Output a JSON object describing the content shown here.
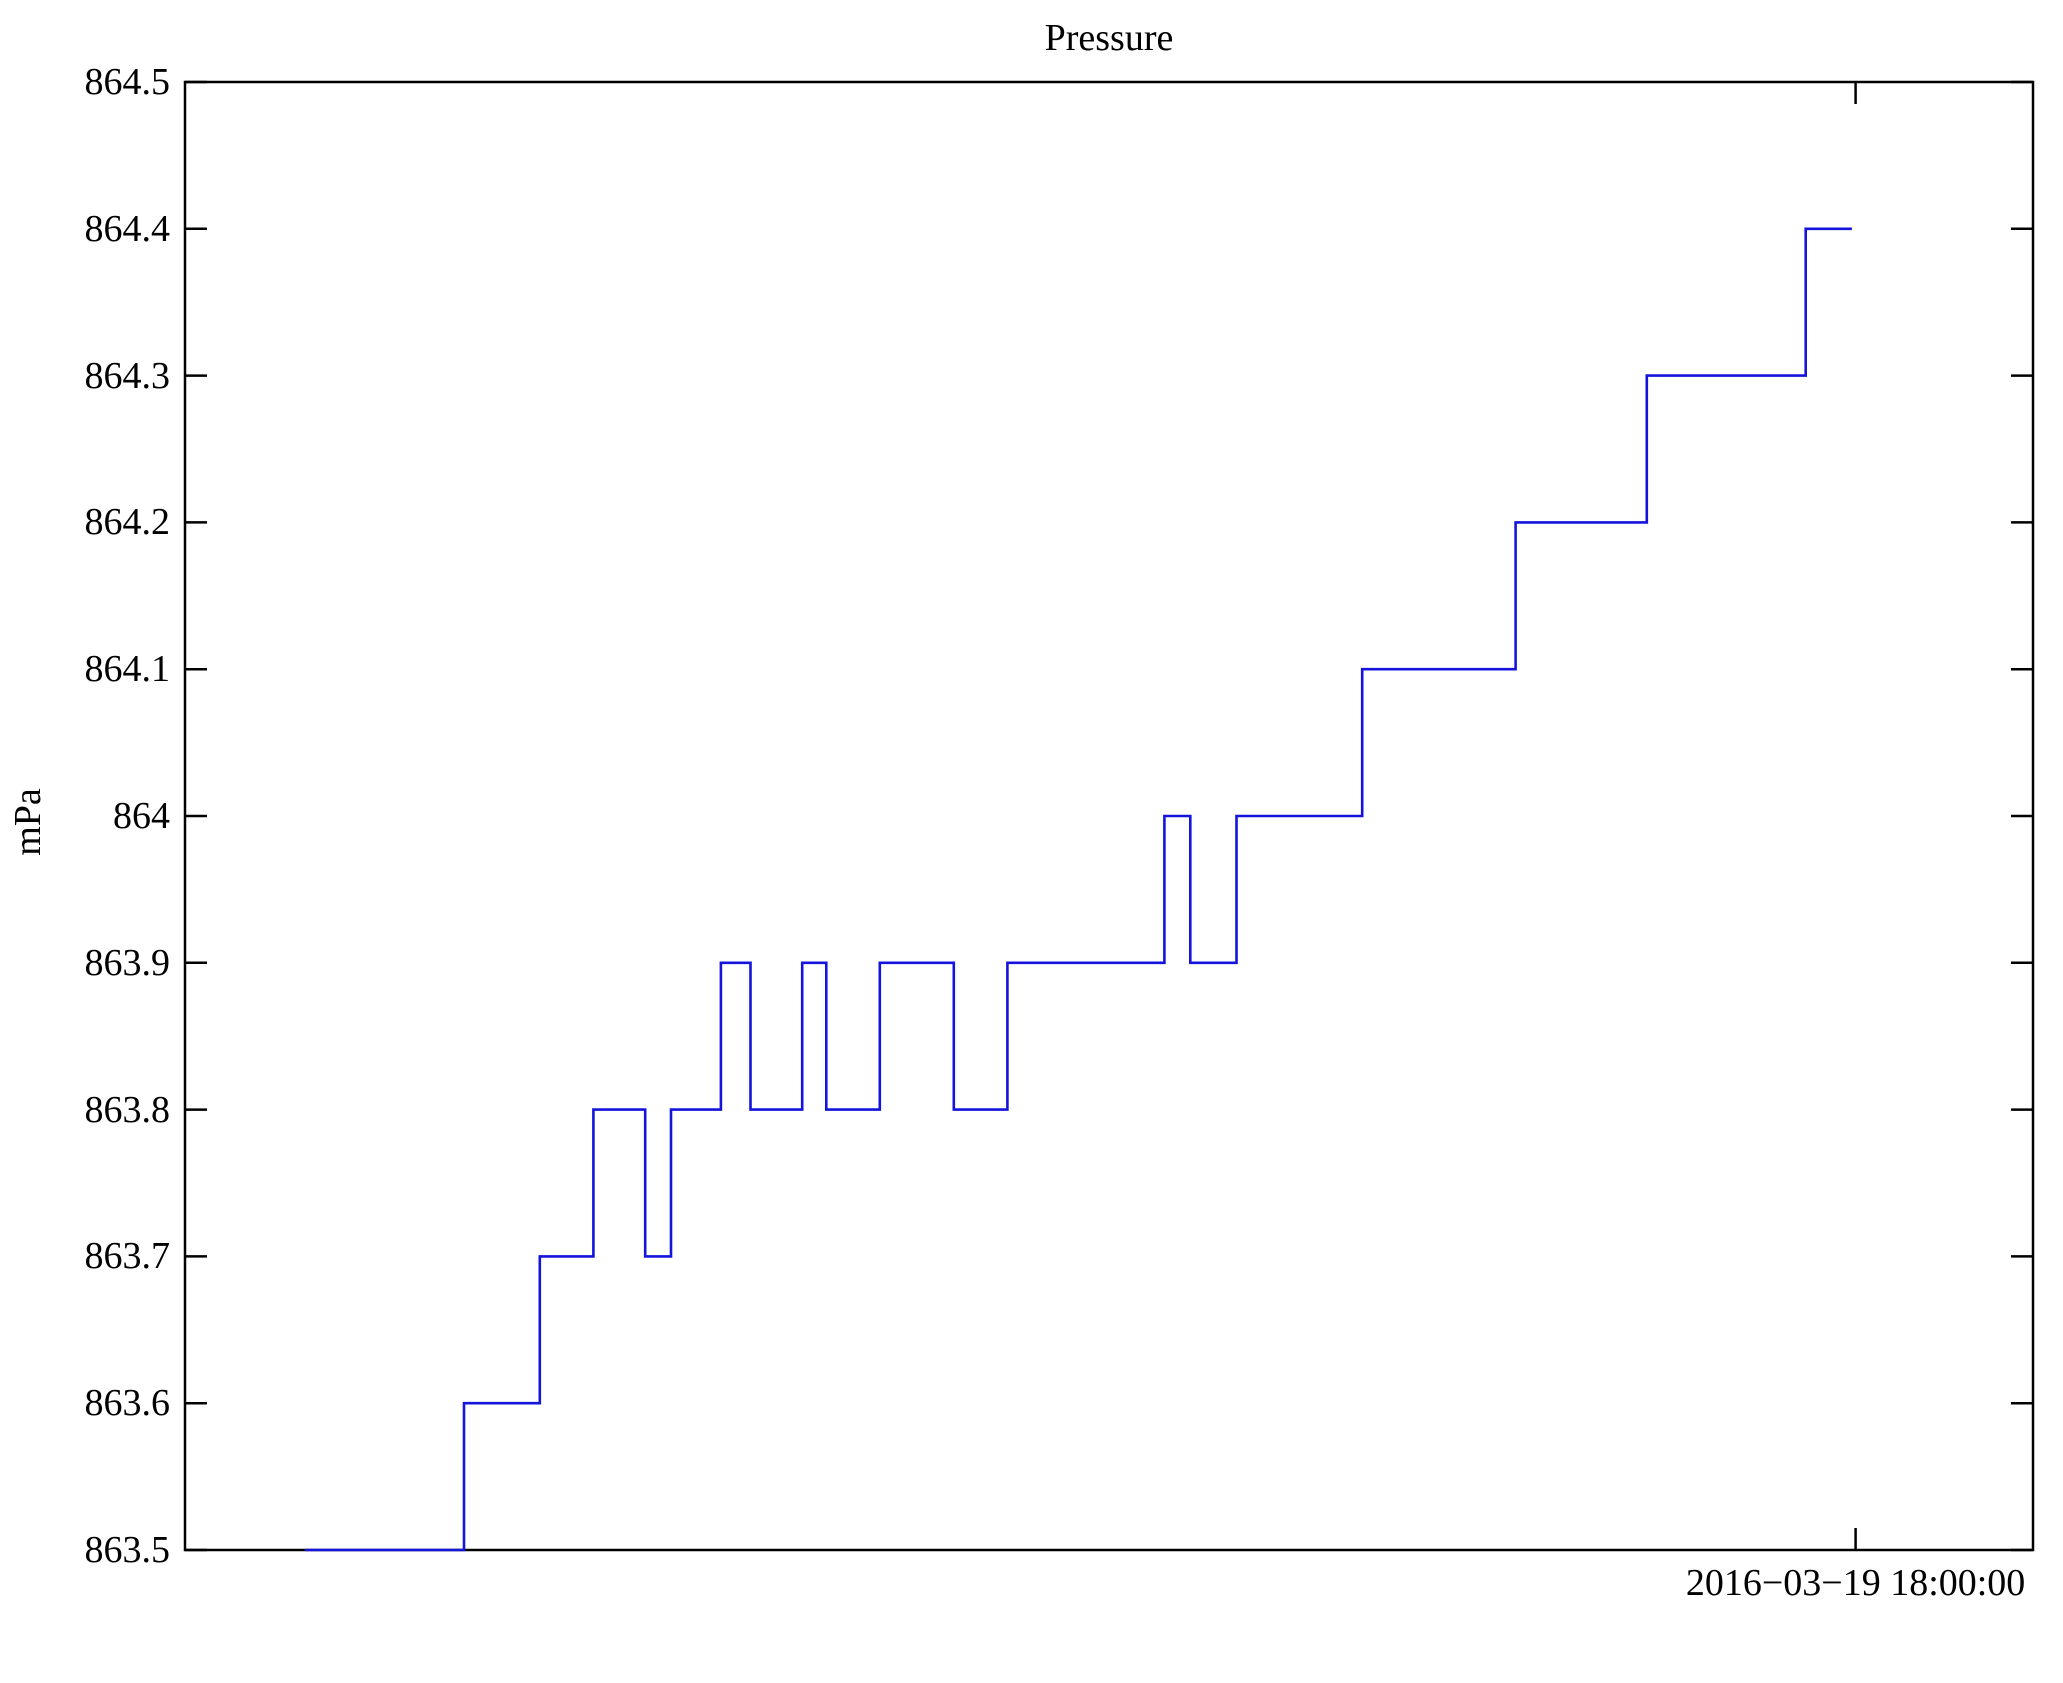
{
  "chart_data": {
    "type": "line",
    "style": "step",
    "title": "Pressure",
    "xlabel": "",
    "ylabel": "mPa",
    "ylim": [
      863.5,
      864.5
    ],
    "grid": false,
    "legend": null,
    "frame": "box",
    "line_color": "#1414dc",
    "axis_color": "#000000",
    "yticks": [
      863.5,
      863.6,
      863.7,
      863.8,
      863.9,
      864,
      864.1,
      864.2,
      864.3,
      864.4,
      864.5
    ],
    "ytick_labels": [
      "863.5",
      "863.6",
      "863.7",
      "863.8",
      "863.9",
      "864",
      "864.1",
      "864.2",
      "864.3",
      "864.4",
      "864.5"
    ],
    "xtick": {
      "label": "2016−03−19 18:00:00",
      "x_frac": 0.904
    },
    "series": [
      {
        "name": "Pressure",
        "unit": "mPa",
        "segments_note": "each segment = [x_start_frac, x_end_frac, value]; x fractions of plot width",
        "segments": [
          [
            0.065,
            0.151,
            863.5
          ],
          [
            0.151,
            0.192,
            863.6
          ],
          [
            0.192,
            0.221,
            863.7
          ],
          [
            0.221,
            0.249,
            863.8
          ],
          [
            0.249,
            0.263,
            863.7
          ],
          [
            0.263,
            0.29,
            863.8
          ],
          [
            0.29,
            0.306,
            863.9
          ],
          [
            0.306,
            0.334,
            863.8
          ],
          [
            0.334,
            0.347,
            863.9
          ],
          [
            0.347,
            0.376,
            863.8
          ],
          [
            0.376,
            0.416,
            863.9
          ],
          [
            0.416,
            0.445,
            863.8
          ],
          [
            0.445,
            0.53,
            863.9
          ],
          [
            0.53,
            0.544,
            864.0
          ],
          [
            0.544,
            0.569,
            863.9
          ],
          [
            0.569,
            0.637,
            864.0
          ],
          [
            0.637,
            0.72,
            864.1
          ],
          [
            0.72,
            0.791,
            864.2
          ],
          [
            0.791,
            0.877,
            864.3
          ],
          [
            0.877,
            0.902,
            864.4
          ]
        ]
      }
    ]
  }
}
